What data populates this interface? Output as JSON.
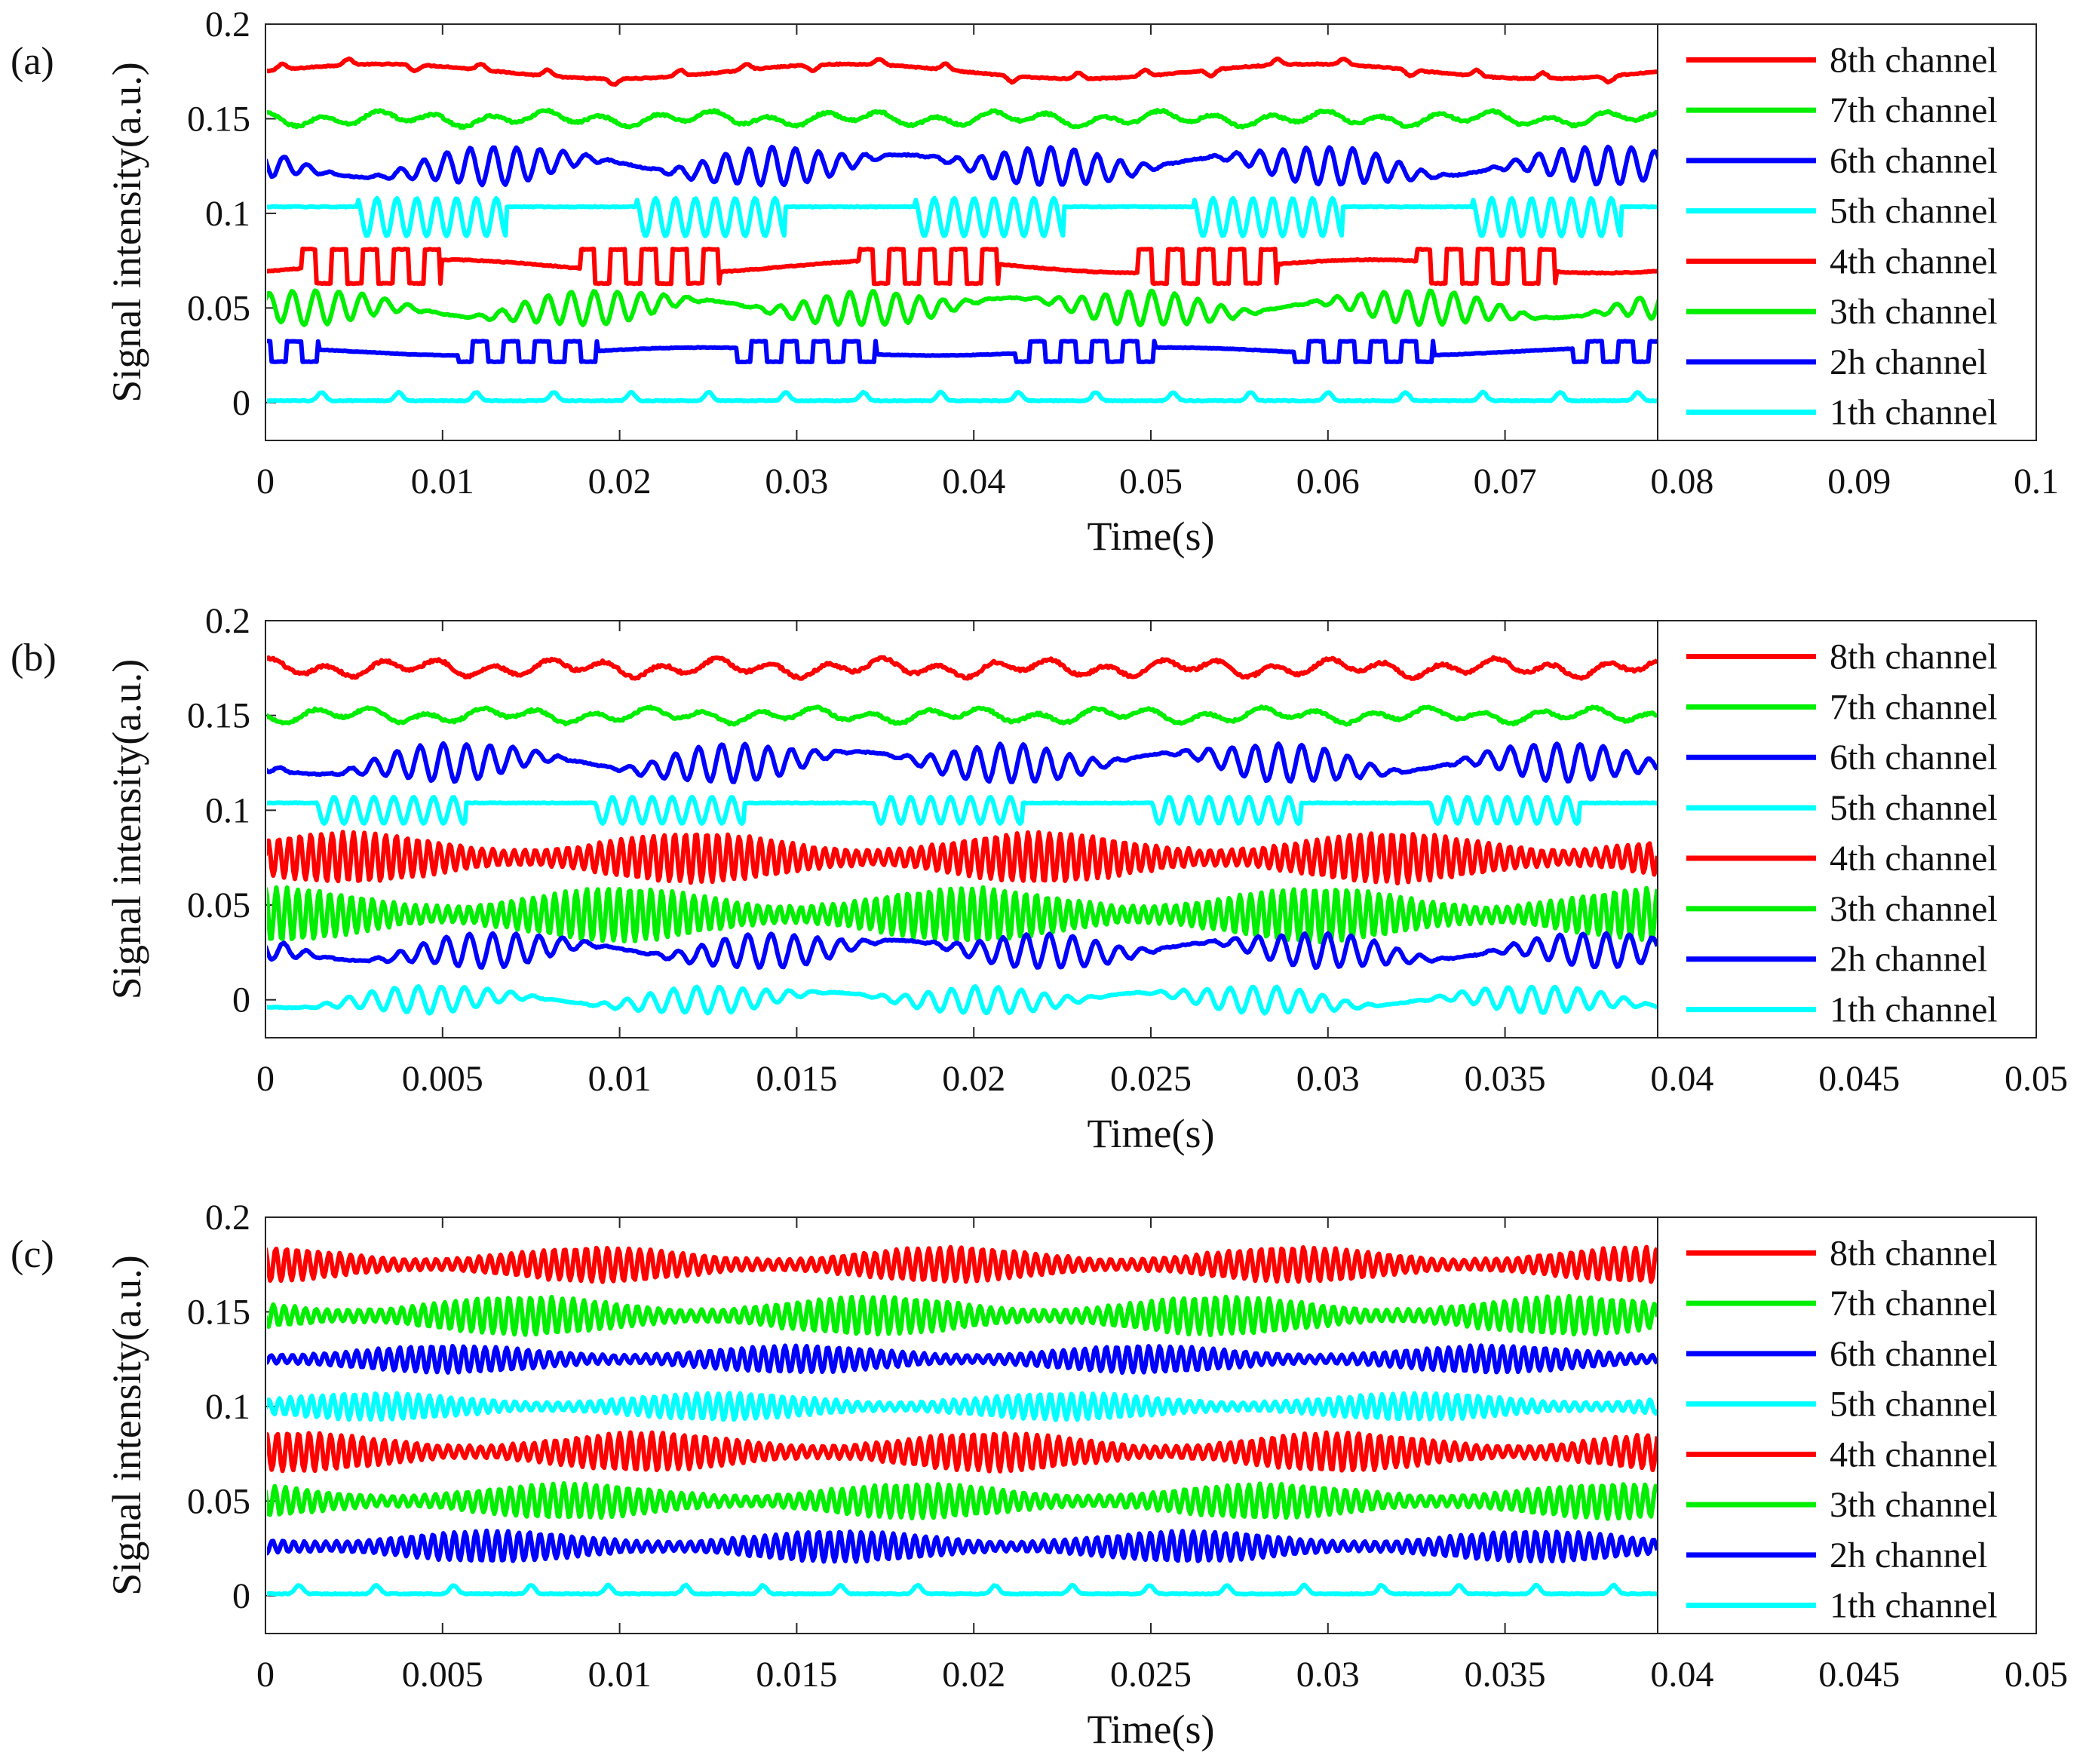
{
  "chart_data": [
    {
      "type": "line",
      "panel_label": "(a)",
      "xlabel": "Time(s)",
      "ylabel": "Signal intensity(a.u.)",
      "xlim": [
        0,
        0.1
      ],
      "ylim": [
        -0.02,
        0.2
      ],
      "x_ticks": [
        "0",
        "0.01",
        "0.02",
        "0.03",
        "0.04",
        "0.05",
        "0.06",
        "0.07",
        "0.08",
        "0.09",
        "0.1"
      ],
      "y_ticks": [
        "0",
        "0.05",
        "0.1",
        "0.15",
        "0.2"
      ],
      "x_data_end": 0.0787,
      "legend_position": "right",
      "series": [
        {
          "name": "8th channel",
          "color": "#ff0000",
          "baseline": 0.175,
          "amplitude": 0.007,
          "pattern": "flat-with-bumps"
        },
        {
          "name": "7th channel",
          "color": "#00ee00",
          "baseline": 0.15,
          "amplitude": 0.005,
          "pattern": "noisy-bumps"
        },
        {
          "name": "6th channel",
          "color": "#0000ff",
          "baseline": 0.125,
          "amplitude": 0.01,
          "pattern": "oscillating"
        },
        {
          "name": "5th channel",
          "color": "#00ffff",
          "baseline": 0.098,
          "amplitude": 0.01,
          "pattern": "burst"
        },
        {
          "name": "4th channel",
          "color": "#ff0000",
          "baseline": 0.072,
          "amplitude": 0.01,
          "pattern": "square-burst"
        },
        {
          "name": "3th channel",
          "color": "#00ee00",
          "baseline": 0.05,
          "amplitude": 0.009,
          "pattern": "oscillating"
        },
        {
          "name": "2h channel",
          "color": "#0000ff",
          "baseline": 0.027,
          "amplitude": 0.006,
          "pattern": "square-burst"
        },
        {
          "name": "1th channel",
          "color": "#00ffff",
          "baseline": 0.002,
          "amplitude": 0.005,
          "pattern": "sparse-bumps"
        }
      ]
    },
    {
      "type": "line",
      "panel_label": "(b)",
      "xlabel": "Time(s)",
      "ylabel": "Signal intensity(a.u.)",
      "xlim": [
        0,
        0.05
      ],
      "ylim": [
        -0.02,
        0.2
      ],
      "x_ticks": [
        "0",
        "0.005",
        "0.01",
        "0.015",
        "0.02",
        "0.025",
        "0.03",
        "0.035",
        "0.04",
        "0.045",
        "0.05"
      ],
      "y_ticks": [
        "0",
        "0.05",
        "0.1",
        "0.15",
        "0.2"
      ],
      "x_data_end": 0.0393,
      "legend_position": "right",
      "series": [
        {
          "name": "8th channel",
          "color": "#ff0000",
          "baseline": 0.175,
          "amplitude": 0.006,
          "pattern": "noisy-bumps"
        },
        {
          "name": "7th channel",
          "color": "#00ee00",
          "baseline": 0.15,
          "amplitude": 0.005,
          "pattern": "noisy-bumps"
        },
        {
          "name": "6th channel",
          "color": "#0000ff",
          "baseline": 0.125,
          "amplitude": 0.01,
          "pattern": "oscillating"
        },
        {
          "name": "5th channel",
          "color": "#00ffff",
          "baseline": 0.1,
          "amplitude": 0.007,
          "pattern": "burst"
        },
        {
          "name": "4th channel",
          "color": "#ff0000",
          "baseline": 0.075,
          "amplitude": 0.013,
          "pattern": "dense-oscillation"
        },
        {
          "name": "3th channel",
          "color": "#00ee00",
          "baseline": 0.045,
          "amplitude": 0.014,
          "pattern": "dense-oscillation"
        },
        {
          "name": "2h channel",
          "color": "#0000ff",
          "baseline": 0.026,
          "amplitude": 0.009,
          "pattern": "oscillating"
        },
        {
          "name": "1th channel",
          "color": "#00ffff",
          "baseline": 0.0,
          "amplitude": 0.007,
          "pattern": "oscillating"
        }
      ]
    },
    {
      "type": "line",
      "panel_label": "(c)",
      "xlabel": "Time(s)",
      "ylabel": "Signal intensity(a.u.)",
      "xlim": [
        0,
        0.05
      ],
      "ylim": [
        -0.02,
        0.2
      ],
      "x_ticks": [
        "0",
        "0.005",
        "0.01",
        "0.015",
        "0.02",
        "0.025",
        "0.03",
        "0.035",
        "0.04",
        "0.045",
        "0.05"
      ],
      "y_ticks": [
        "0",
        "0.05",
        "0.1",
        "0.15",
        "0.2"
      ],
      "x_data_end": 0.0393,
      "legend_position": "right",
      "series": [
        {
          "name": "8th channel",
          "color": "#ff0000",
          "baseline": 0.175,
          "amplitude": 0.009,
          "pattern": "dense-oscillation"
        },
        {
          "name": "7th channel",
          "color": "#00ee00",
          "baseline": 0.148,
          "amplitude": 0.01,
          "pattern": "dense-oscillation"
        },
        {
          "name": "6th channel",
          "color": "#0000ff",
          "baseline": 0.125,
          "amplitude": 0.007,
          "pattern": "dense-oscillation"
        },
        {
          "name": "5th channel",
          "color": "#00ffff",
          "baseline": 0.1,
          "amplitude": 0.007,
          "pattern": "dense-oscillation"
        },
        {
          "name": "4th channel",
          "color": "#ff0000",
          "baseline": 0.076,
          "amplitude": 0.01,
          "pattern": "dense-oscillation"
        },
        {
          "name": "3th channel",
          "color": "#00ee00",
          "baseline": 0.05,
          "amplitude": 0.009,
          "pattern": "dense-oscillation"
        },
        {
          "name": "2h channel",
          "color": "#0000ff",
          "baseline": 0.026,
          "amplitude": 0.008,
          "pattern": "dense-oscillation"
        },
        {
          "name": "1th channel",
          "color": "#00ffff",
          "baseline": 0.002,
          "amplitude": 0.005,
          "pattern": "sparse-bumps"
        }
      ]
    }
  ]
}
